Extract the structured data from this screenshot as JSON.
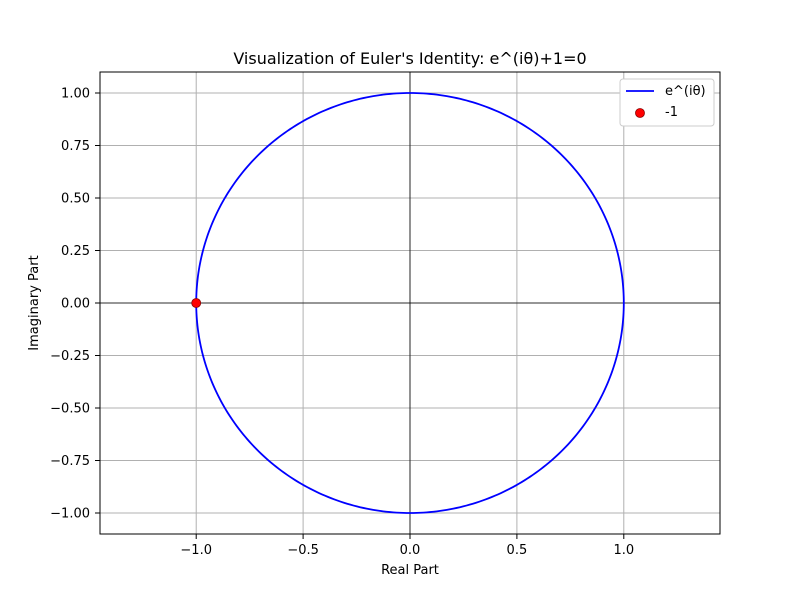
{
  "chart_data": {
    "type": "line",
    "title": "Visualization of Euler's Identity: e^(iθ)+1=0",
    "xlabel": "Real Part",
    "ylabel": "Imaginary Part",
    "xlim": [
      -1.45,
      1.45
    ],
    "ylim": [
      -1.1,
      1.1
    ],
    "xticks": [
      -1.0,
      -0.5,
      0.0,
      0.5,
      1.0
    ],
    "xtick_labels": [
      "−1.0",
      "−0.5",
      "0.0",
      "0.5",
      "1.0"
    ],
    "yticks": [
      -1.0,
      -0.75,
      -0.5,
      -0.25,
      0.0,
      0.25,
      0.5,
      0.75,
      1.0
    ],
    "ytick_labels": [
      "−1.00",
      "−0.75",
      "−0.50",
      "−0.25",
      "0.00",
      "0.25",
      "0.50",
      "0.75",
      "1.00"
    ],
    "grid": true,
    "axis_lines_at_zero": true,
    "legend_position": "upper right",
    "series": [
      {
        "name": "e^(iθ)",
        "kind": "line",
        "color": "#0000ff",
        "function": "unit circle: x = cos(θ), y = sin(θ), θ from 0 to 2π"
      },
      {
        "name": "-1",
        "kind": "scatter",
        "color": "#ff0000",
        "points": [
          {
            "x": -1.0,
            "y": 0.0
          }
        ]
      }
    ]
  }
}
